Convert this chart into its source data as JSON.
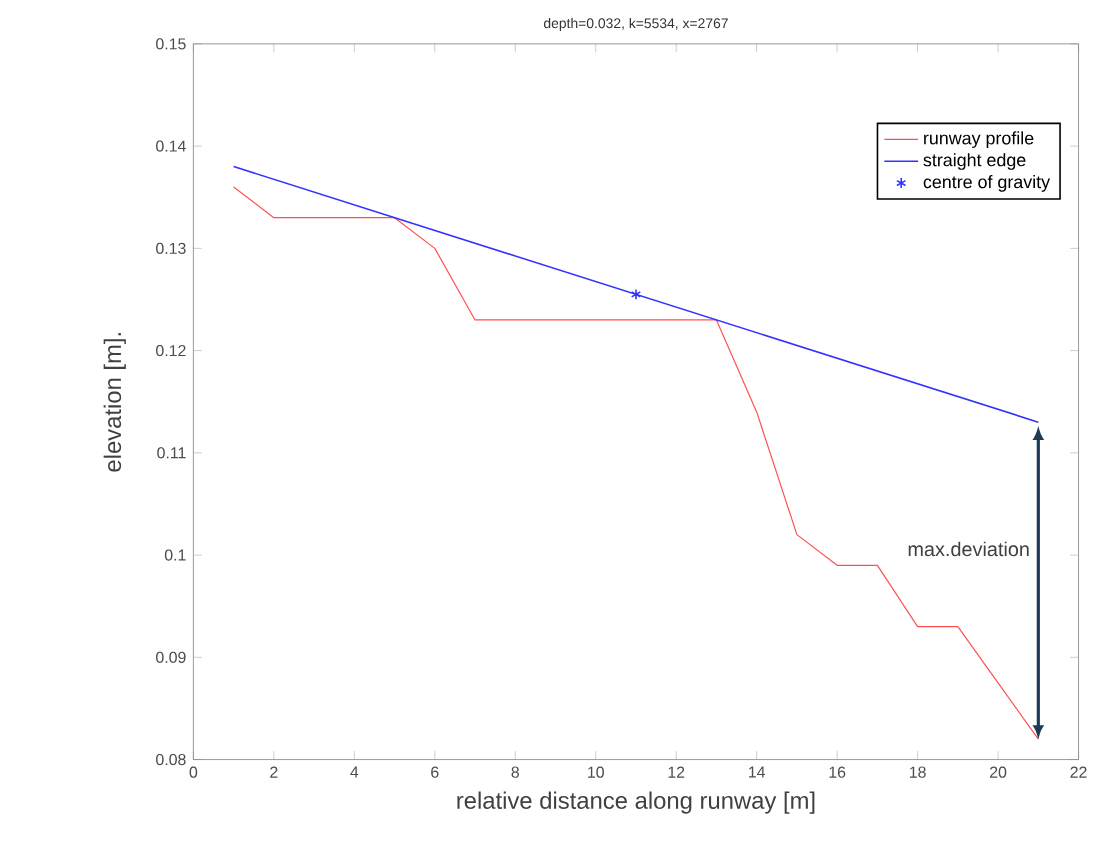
{
  "chart_data": {
    "type": "line",
    "title": "depth=0.032, k=5534, x=2767",
    "xlabel": "relative distance along runway [m]",
    "ylabel": "elevation [m].",
    "xlim": [
      0,
      22
    ],
    "ylim": [
      0.08,
      0.15
    ],
    "xticks": [
      0,
      2,
      4,
      6,
      8,
      10,
      12,
      14,
      16,
      18,
      20,
      22
    ],
    "yticks": [
      0.08,
      0.09,
      0.1,
      0.11,
      0.12,
      0.13,
      0.14,
      0.15
    ],
    "legend": "top right",
    "series": [
      {
        "name": "runway profile",
        "color": "#ff5050",
        "x": [
          1,
          2,
          3,
          4,
          5,
          6,
          7,
          8,
          9,
          10,
          11,
          12,
          13,
          14,
          15,
          16,
          17,
          18,
          19,
          20,
          21
        ],
        "values": [
          0.136,
          0.133,
          0.133,
          0.133,
          0.133,
          0.13,
          0.123,
          0.123,
          0.123,
          0.123,
          0.123,
          0.123,
          0.123,
          0.114,
          0.102,
          0.099,
          0.099,
          0.093,
          0.093,
          0.0875,
          0.082
        ]
      },
      {
        "name": "straight edge",
        "color": "#3333ff",
        "x": [
          1,
          21
        ],
        "values": [
          0.138,
          0.113
        ]
      },
      {
        "name": "centre of gravity",
        "type": "scatter",
        "marker": "cross",
        "color": "#3333ff",
        "x": [
          11
        ],
        "values": [
          0.1255
        ]
      }
    ],
    "annotations": [
      "max.deviation"
    ]
  }
}
